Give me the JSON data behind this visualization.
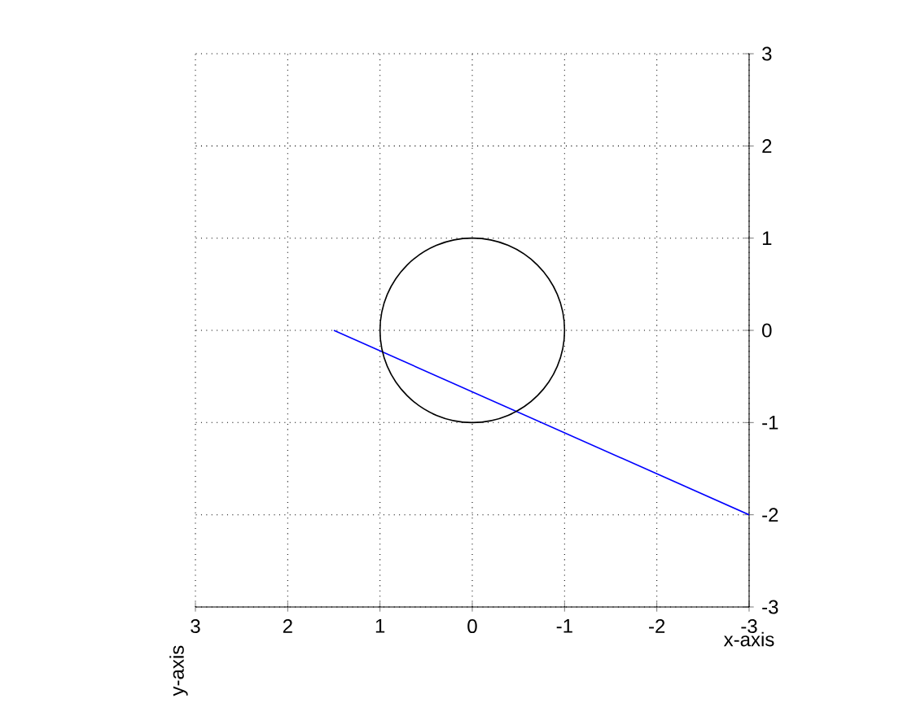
{
  "chart_data": {
    "type": "line",
    "xlabel": "x-axis",
    "ylabel": "y-axis",
    "xlim": [
      3,
      -3
    ],
    "ylim": [
      -3,
      3
    ],
    "xticks": [
      3,
      2,
      1,
      0,
      -1,
      -2,
      -3
    ],
    "yticks": [
      -3,
      -2,
      -1,
      0,
      1,
      2,
      3
    ],
    "grid": true,
    "series": [
      {
        "color": "#0000ff",
        "x": [
          1.5,
          -3
        ],
        "values": [
          0,
          -2
        ]
      }
    ]
  }
}
